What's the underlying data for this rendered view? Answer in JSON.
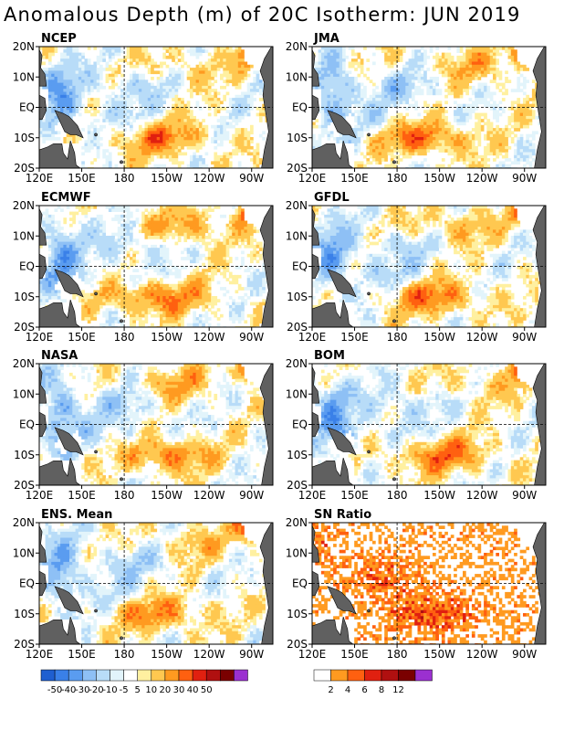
{
  "title": "Anomalous Depth (m) of 20C Isotherm: JUN 2019",
  "chart_data": [
    {
      "type": "heatmap",
      "title": "NCEP",
      "xticks": [
        "120E",
        "150E",
        "180",
        "150W",
        "120W",
        "90W"
      ],
      "yticks": [
        "20N",
        "10N",
        "EQ",
        "10S",
        "20S"
      ],
      "xlim": [
        "120E",
        "75W"
      ],
      "ylim": [
        "20S",
        "20N"
      ]
    },
    {
      "type": "heatmap",
      "title": "JMA",
      "xticks": [
        "120E",
        "150E",
        "180",
        "150W",
        "120W",
        "90W"
      ],
      "yticks": [
        "20N",
        "10N",
        "EQ",
        "10S",
        "20S"
      ],
      "xlim": [
        "120E",
        "75W"
      ],
      "ylim": [
        "20S",
        "20N"
      ]
    },
    {
      "type": "heatmap",
      "title": "ECMWF",
      "xticks": [
        "120E",
        "150E",
        "180",
        "150W",
        "120W",
        "90W"
      ],
      "yticks": [
        "20N",
        "10N",
        "EQ",
        "10S",
        "20S"
      ],
      "xlim": [
        "120E",
        "75W"
      ],
      "ylim": [
        "20S",
        "20N"
      ]
    },
    {
      "type": "heatmap",
      "title": "GFDL",
      "xticks": [
        "120E",
        "150E",
        "180",
        "150W",
        "120W",
        "90W"
      ],
      "yticks": [
        "20N",
        "10N",
        "EQ",
        "10S",
        "20S"
      ],
      "xlim": [
        "120E",
        "75W"
      ],
      "ylim": [
        "20S",
        "20N"
      ]
    },
    {
      "type": "heatmap",
      "title": "NASA",
      "xticks": [
        "120E",
        "150E",
        "180",
        "150W",
        "120W",
        "90W"
      ],
      "yticks": [
        "20N",
        "10N",
        "EQ",
        "10S",
        "20S"
      ],
      "xlim": [
        "120E",
        "75W"
      ],
      "ylim": [
        "20S",
        "20N"
      ]
    },
    {
      "type": "heatmap",
      "title": "BOM",
      "xticks": [
        "120E",
        "150E",
        "180",
        "150W",
        "120W",
        "90W"
      ],
      "yticks": [
        "20N",
        "10N",
        "EQ",
        "10S",
        "20S"
      ],
      "xlim": [
        "120E",
        "75W"
      ],
      "ylim": [
        "20S",
        "20N"
      ]
    },
    {
      "type": "heatmap",
      "title": "ENS. Mean",
      "xticks": [
        "120E",
        "150E",
        "180",
        "150W",
        "120W",
        "90W"
      ],
      "yticks": [
        "20N",
        "10N",
        "EQ",
        "10S",
        "20S"
      ],
      "xlim": [
        "120E",
        "75W"
      ],
      "ylim": [
        "20S",
        "20N"
      ]
    },
    {
      "type": "heatmap",
      "title": "SN Ratio",
      "xticks": [
        "120E",
        "150E",
        "180",
        "150W",
        "120W",
        "90W"
      ],
      "yticks": [
        "20N",
        "10N",
        "EQ",
        "10S",
        "20S"
      ],
      "xlim": [
        "120E",
        "75W"
      ],
      "ylim": [
        "20S",
        "20N"
      ]
    }
  ],
  "colorbars": [
    {
      "colors": [
        "#1f5fd0",
        "#3a80e8",
        "#5a9cf0",
        "#8ec0f5",
        "#b8dcf8",
        "#e2f4fb",
        "#ffffff",
        "#fff0a0",
        "#ffc850",
        "#ff9a20",
        "#ff6010",
        "#e02010",
        "#b01010",
        "#7a0000",
        "#9b30d0"
      ],
      "labels": [
        "-50",
        "-40",
        "-30",
        "-20",
        "-10",
        "-5",
        "5",
        "10",
        "20",
        "30",
        "40",
        "50"
      ]
    },
    {
      "colors": [
        "#ffffff",
        "#ff9a20",
        "#ff6010",
        "#e02010",
        "#b01010",
        "#7a0000",
        "#9b30d0"
      ],
      "labels": [
        "2",
        "4",
        "6",
        "8",
        "12"
      ]
    }
  ]
}
